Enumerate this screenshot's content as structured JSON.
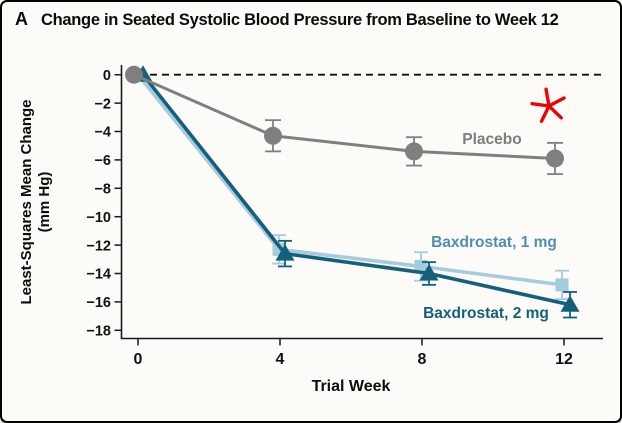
{
  "figure": {
    "panel_label": "A",
    "title": "Change in Seated Systolic Blood Pressure from Baseline to Week 12"
  },
  "chart_data": {
    "type": "line",
    "title": "Change in Seated Systolic Blood Pressure from Baseline to Week 12",
    "xlabel": "Trial Week",
    "ylabel": "Least-Squares Mean Change (mm Hg)",
    "ylabel_lines": [
      "Least-Squares Mean Change",
      "(mm Hg)"
    ],
    "x": [
      0,
      4,
      8,
      12
    ],
    "xticks": [
      "0",
      "4",
      "8",
      "12"
    ],
    "yticks": [
      0,
      -2,
      -4,
      -6,
      -8,
      -10,
      -12,
      -14,
      -16,
      -18
    ],
    "ylim": [
      -18,
      0
    ],
    "grid": false,
    "zero_reference_line": "dashed-black",
    "legend_position": "inline-labels",
    "series": [
      {
        "name": "Placebo",
        "marker": "circle",
        "color": "#7f7f7f",
        "label_color": "#7d7d7d",
        "values": [
          0,
          -4.3,
          -5.4,
          -5.9
        ],
        "errors": [
          0,
          1.1,
          1.0,
          1.1
        ]
      },
      {
        "name": "Baxdrostat, 1 mg",
        "marker": "square",
        "color": "#a6cbdf",
        "label_color": "#4e8fb0",
        "values": [
          0,
          -12.3,
          -13.5,
          -14.8
        ],
        "errors": [
          0,
          1.0,
          1.0,
          1.0
        ]
      },
      {
        "name": "Baxdrostat, 2 mg",
        "marker": "triangle",
        "color": "#14607c",
        "label_color": "#14607c",
        "values": [
          0,
          -12.6,
          -14.0,
          -16.2
        ],
        "errors": [
          0,
          0.9,
          0.8,
          0.9
        ]
      }
    ],
    "annotations": [
      {
        "name": "red-star-annotation",
        "glyph": "asterisk-star",
        "color": "#ec0404",
        "near_week": 12,
        "near_value": -2
      }
    ]
  }
}
